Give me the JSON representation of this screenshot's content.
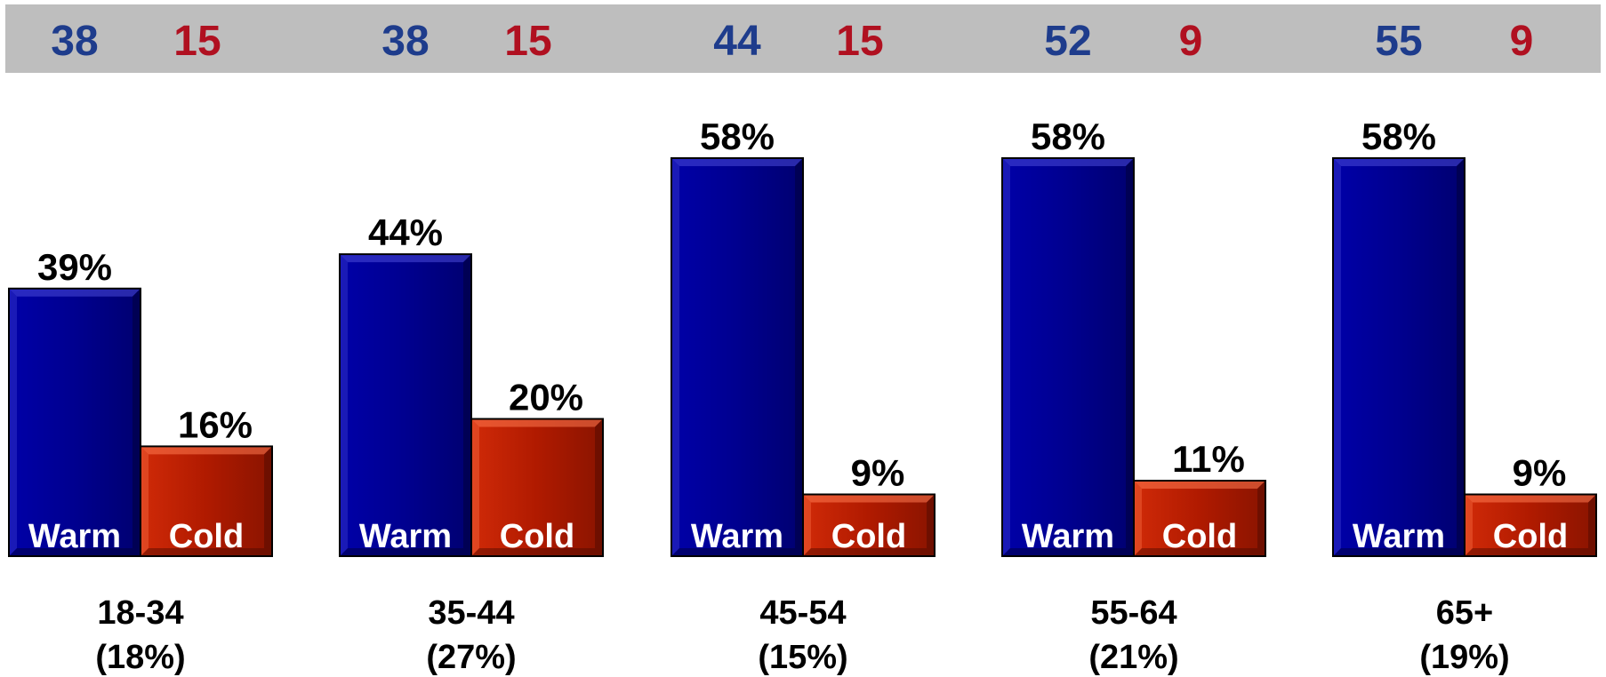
{
  "chart_data": {
    "type": "bar",
    "categories": [
      "18-34",
      "35-44",
      "45-54",
      "55-64",
      "65+"
    ],
    "category_shares": [
      "(18%)",
      "(27%)",
      "(15%)",
      "(21%)",
      "(19%)"
    ],
    "series": [
      {
        "name": "Warm",
        "values": [
          39,
          44,
          58,
          58,
          58
        ],
        "labels": [
          "39%",
          "44%",
          "58%",
          "58%",
          "58%"
        ],
        "color": "#00008B"
      },
      {
        "name": "Cold",
        "values": [
          16,
          20,
          9,
          11,
          9
        ],
        "labels": [
          "16%",
          "20%",
          "9%",
          "11%",
          "9%"
        ],
        "color": "#B01A00"
      }
    ],
    "top_band": {
      "warm_counts": [
        "38",
        "38",
        "44",
        "52",
        "55"
      ],
      "cold_counts": [
        "15",
        "15",
        "15",
        "9",
        "9"
      ],
      "warm_color": "#1E3C8C",
      "cold_color": "#B01020",
      "background": "#BEBEBE"
    },
    "ylim": [
      0,
      58
    ],
    "grid": false,
    "legend": "none"
  }
}
